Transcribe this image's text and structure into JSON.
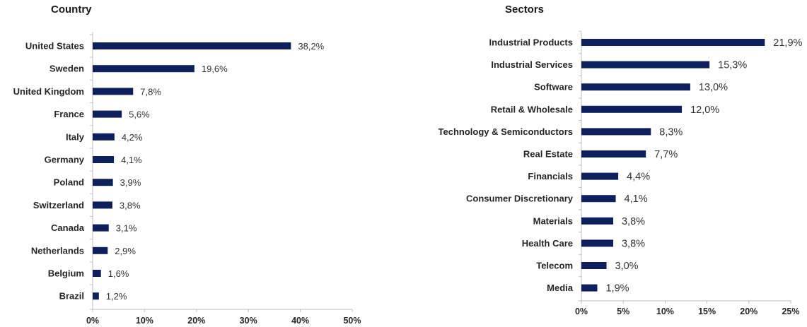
{
  "chart_data": [
    {
      "type": "bar",
      "orientation": "horizontal",
      "title": "Country",
      "categories": [
        "United States",
        "Sweden",
        "United Kingdom",
        "France",
        "Italy",
        "Germany",
        "Poland",
        "Switzerland",
        "Canada",
        "Netherlands",
        "Belgium",
        "Brazil"
      ],
      "values": [
        38.2,
        19.6,
        7.8,
        5.6,
        4.2,
        4.1,
        3.9,
        3.8,
        3.1,
        2.9,
        1.6,
        1.2
      ],
      "value_labels": [
        "38,2%",
        "19,6%",
        "7,8%",
        "5,6%",
        "4,2%",
        "4,1%",
        "3,9%",
        "3,8%",
        "3,1%",
        "2,9%",
        "1,6%",
        "1,2%"
      ],
      "xlim": [
        0,
        50
      ],
      "ticks": [
        0,
        10,
        20,
        30,
        40,
        50
      ],
      "tick_labels": [
        "0%",
        "10%",
        "20%",
        "30%",
        "40%",
        "50%"
      ],
      "xlabel": "",
      "ylabel": "",
      "bar_color": "#0d1f5c",
      "grid": false
    },
    {
      "type": "bar",
      "orientation": "horizontal",
      "title": "Sectors",
      "categories": [
        "Industrial Products",
        "Industrial Services",
        "Software",
        "Retail & Wholesale",
        "Technology & Semiconductors",
        "Real Estate",
        "Financials",
        "Consumer Discretionary",
        "Materials",
        "Health Care",
        "Telecom",
        "Media"
      ],
      "values": [
        21.9,
        15.3,
        13.0,
        12.0,
        8.3,
        7.7,
        4.4,
        4.1,
        3.8,
        3.8,
        3.0,
        1.9
      ],
      "value_labels": [
        "21,9%",
        "15,3%",
        "13,0%",
        "12,0%",
        "8,3%",
        "7,7%",
        "4,4%",
        "4,1%",
        "3,8%",
        "3,8%",
        "3,0%",
        "1,9%"
      ],
      "xlim": [
        0,
        25
      ],
      "ticks": [
        0,
        5,
        10,
        15,
        20,
        25
      ],
      "tick_labels": [
        "0%",
        "5%",
        "10%",
        "15%",
        "20%",
        "25%"
      ],
      "xlabel": "",
      "ylabel": "",
      "bar_color": "#0d1f5c",
      "grid": false
    }
  ]
}
